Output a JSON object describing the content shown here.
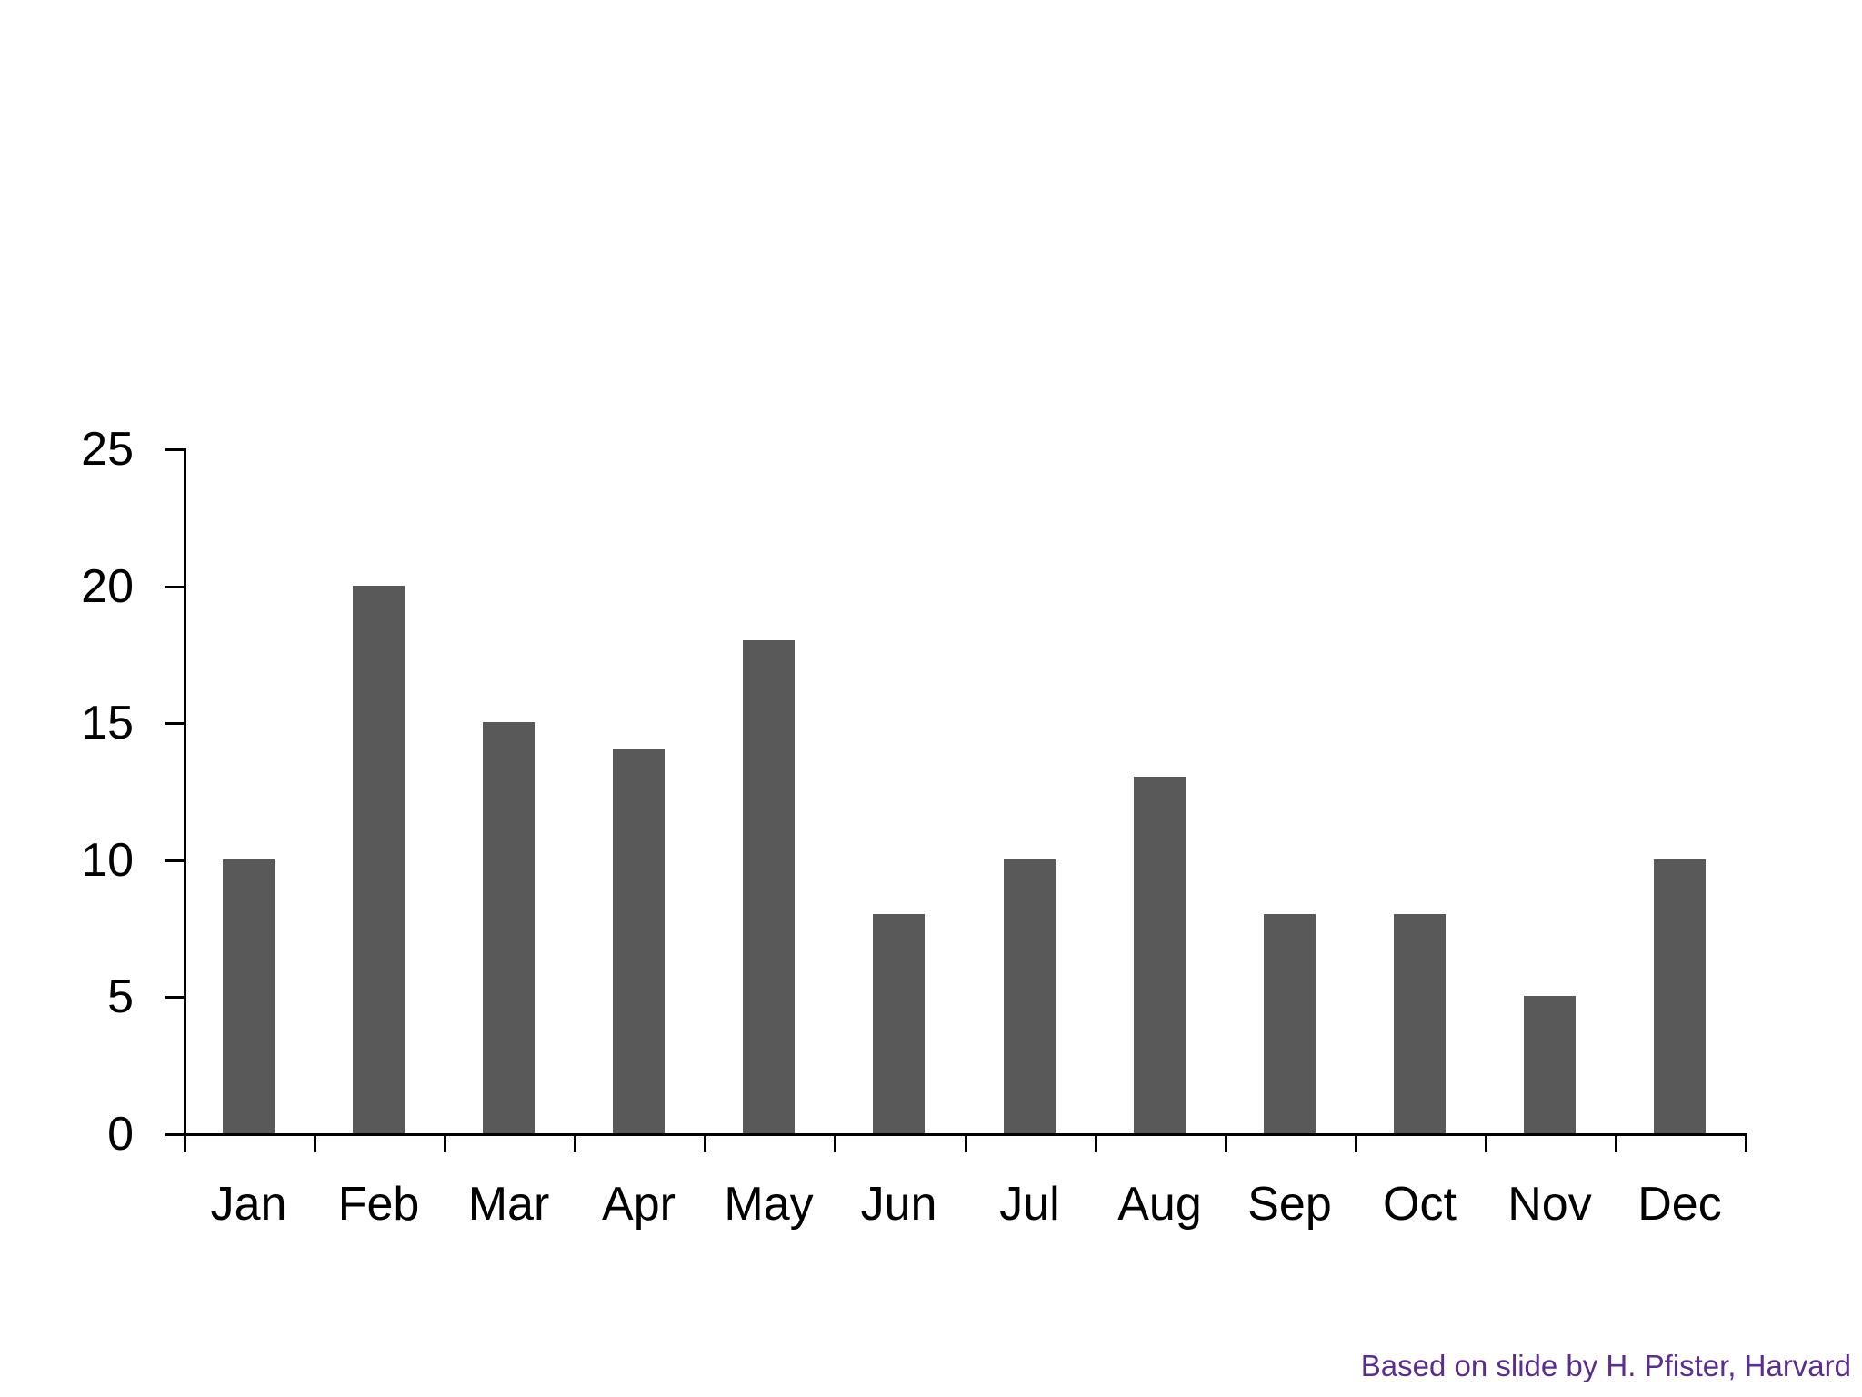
{
  "slide": {
    "background": "#ffffff",
    "attribution": {
      "text": "Based on slide by H. Pfister, Harvard",
      "color": "#5B2D90"
    }
  },
  "chart_data": {
    "type": "bar",
    "title": "",
    "xlabel": "",
    "ylabel": "",
    "categories": [
      "Jan",
      "Feb",
      "Mar",
      "Apr",
      "May",
      "Jun",
      "Jul",
      "Aug",
      "Sep",
      "Oct",
      "Nov",
      "Dec"
    ],
    "values": [
      10,
      20,
      15,
      14,
      18,
      8,
      10,
      13,
      8,
      8,
      5,
      10
    ],
    "ylim": [
      0,
      25
    ],
    "ytick_interval": 5,
    "ytick_labels": [
      "0",
      "5",
      "10",
      "15",
      "20",
      "25"
    ],
    "grid": false,
    "legend": false,
    "bar_color": "#595959",
    "axis_color": "#000000",
    "label_color": "#000000"
  }
}
